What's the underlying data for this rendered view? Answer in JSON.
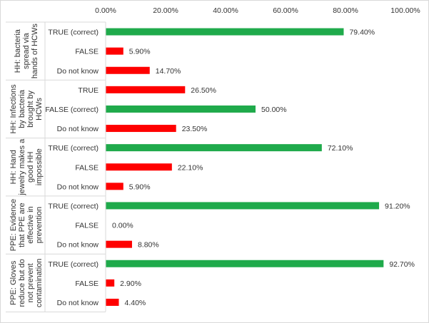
{
  "chart_data": {
    "type": "bar",
    "orientation": "horizontal",
    "xlim": [
      0,
      100
    ],
    "x_ticks": [
      0,
      20,
      40,
      60,
      80,
      100
    ],
    "x_tick_labels": [
      "0.00%",
      "20.00%",
      "40.00%",
      "60.00%",
      "80.00%",
      "100.00%"
    ],
    "x_axis_position": "top",
    "grid": false,
    "legend": "none",
    "colors": {
      "correct": "#1faa4b",
      "incorrect": "#ff0000"
    },
    "groups": [
      {
        "label": "HH: bacteria spread via hands of HCWs",
        "label_lines": [
          "HH: bacteria",
          "spread via",
          "hands of HCWs"
        ],
        "bars": [
          {
            "category": "TRUE (correct)",
            "value": 79.4,
            "label": "79.40%",
            "correct": true
          },
          {
            "category": "FALSE",
            "value": 5.9,
            "label": "5.90%",
            "correct": false
          },
          {
            "category": "Do not know",
            "value": 14.7,
            "label": "14.70%",
            "correct": false
          }
        ]
      },
      {
        "label": "HH: Infections by bacteria brought by HCWs",
        "label_lines": [
          "HH: Infections",
          "by bacteria",
          "brought by",
          "HCWs"
        ],
        "bars": [
          {
            "category": "TRUE",
            "value": 26.5,
            "label": "26.50%",
            "correct": false
          },
          {
            "category": "FALSE (correct)",
            "value": 50.0,
            "label": "50.00%",
            "correct": true
          },
          {
            "category": "Do not know",
            "value": 23.5,
            "label": "23.50%",
            "correct": false
          }
        ]
      },
      {
        "label": "HH: Hand jewelry makes a good HH impossible",
        "label_lines": [
          "HH: Hand",
          "jewelry makes a",
          "good HH",
          "impossible"
        ],
        "bars": [
          {
            "category": "TRUE (correct)",
            "value": 72.1,
            "label": "72.10%",
            "correct": true
          },
          {
            "category": "FALSE",
            "value": 22.1,
            "label": "22.10%",
            "correct": false
          },
          {
            "category": "Do not know",
            "value": 5.9,
            "label": "5.90%",
            "correct": false
          }
        ]
      },
      {
        "label": "PPE: Evidence that PPE are effective in prevention",
        "label_lines": [
          "PPE: Evidence",
          "that PPE are",
          "effective in",
          "prevention"
        ],
        "bars": [
          {
            "category": "TRUE (correct)",
            "value": 91.2,
            "label": "91.20%",
            "correct": true
          },
          {
            "category": "FALSE",
            "value": 0.0,
            "label": "0.00%",
            "correct": false
          },
          {
            "category": "Do not know",
            "value": 8.8,
            "label": "8.80%",
            "correct": false
          }
        ]
      },
      {
        "label": "PPE: Gloves reduce but do not prevent contamination",
        "label_lines": [
          "PPE: Gloves",
          "reduce but do",
          "not prevent",
          "contamination"
        ],
        "bars": [
          {
            "category": "TRUE (correct)",
            "value": 92.7,
            "label": "92.70%",
            "correct": true
          },
          {
            "category": "FALSE",
            "value": 2.9,
            "label": "2.90%",
            "correct": false
          },
          {
            "category": "Do not know",
            "value": 4.4,
            "label": "4.40%",
            "correct": false
          }
        ]
      }
    ]
  }
}
